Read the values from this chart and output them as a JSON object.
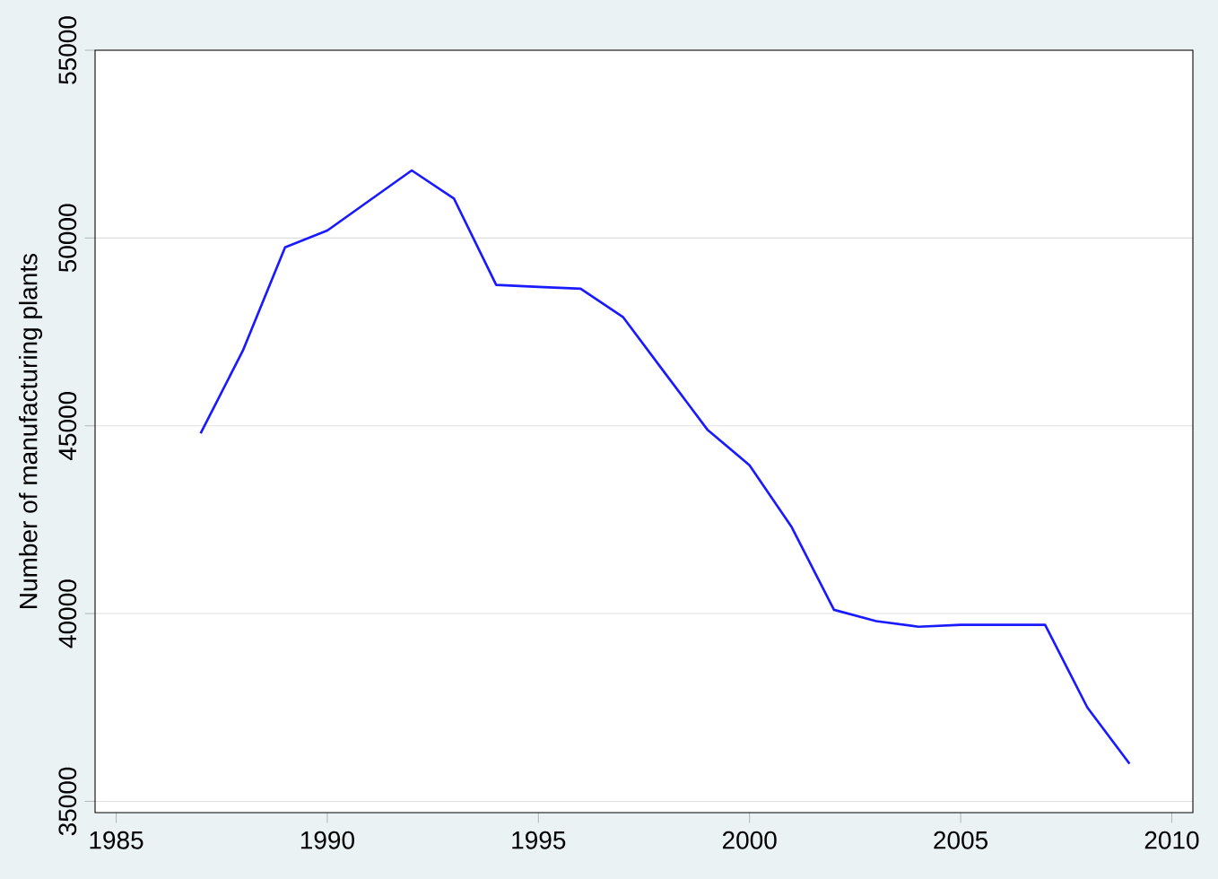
{
  "chart_data": {
    "type": "line",
    "ylabel": "Number of manufacturing plants",
    "x": [
      1987,
      1988,
      1989,
      1990,
      1991,
      1992,
      1993,
      1994,
      1995,
      1996,
      1997,
      1998,
      1999,
      2000,
      2001,
      2002,
      2003,
      2004,
      2005,
      2006,
      2007,
      2008,
      2009
    ],
    "series": [
      {
        "color": "#1a1aff",
        "values": [
          44800,
          47000,
          49750,
          50200,
          51000,
          51800,
          51050,
          48750,
          48700,
          48650,
          47900,
          46400,
          44900,
          43950,
          42300,
          40100,
          39800,
          39650,
          39700,
          39700,
          39700,
          37500,
          36000
        ]
      }
    ],
    "xlim": [
      1984.5,
      2010.5
    ],
    "ylim": [
      34700,
      55000
    ],
    "xticks": [
      1985,
      1990,
      1995,
      2000,
      2005,
      2010
    ],
    "yticks": [
      35000,
      40000,
      45000,
      50000,
      55000
    ],
    "grid": "y",
    "marker": "none",
    "line_style": "solid"
  }
}
